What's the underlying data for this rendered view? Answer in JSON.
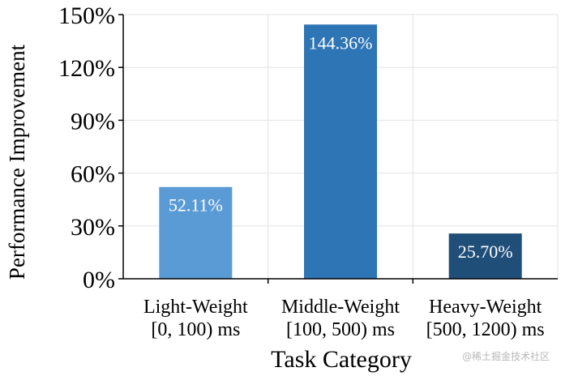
{
  "chart_data": {
    "type": "bar",
    "title": "",
    "xlabel": "Task Category",
    "ylabel": "Performance Improvement",
    "categories": [
      [
        "Light-Weight",
        "[0, 100) ms"
      ],
      [
        "Middle-Weight",
        "[100, 500) ms"
      ],
      [
        "Heavy-Weight",
        "[500, 1200) ms"
      ]
    ],
    "values": [
      52.11,
      144.36,
      25.7
    ],
    "value_labels": [
      "52.11%",
      "144.36%",
      "25.70%"
    ],
    "bar_colors": [
      "#5b9bd5",
      "#2e75b6",
      "#1f4e79"
    ],
    "ylim": [
      0,
      150
    ],
    "yticks": [
      0,
      30,
      60,
      90,
      120,
      150
    ],
    "ytick_labels": [
      "0%",
      "30%",
      "60%",
      "90%",
      "120%",
      "150%"
    ],
    "grid": true,
    "legend": "none"
  },
  "watermark": "@稀土掘金技术社区"
}
